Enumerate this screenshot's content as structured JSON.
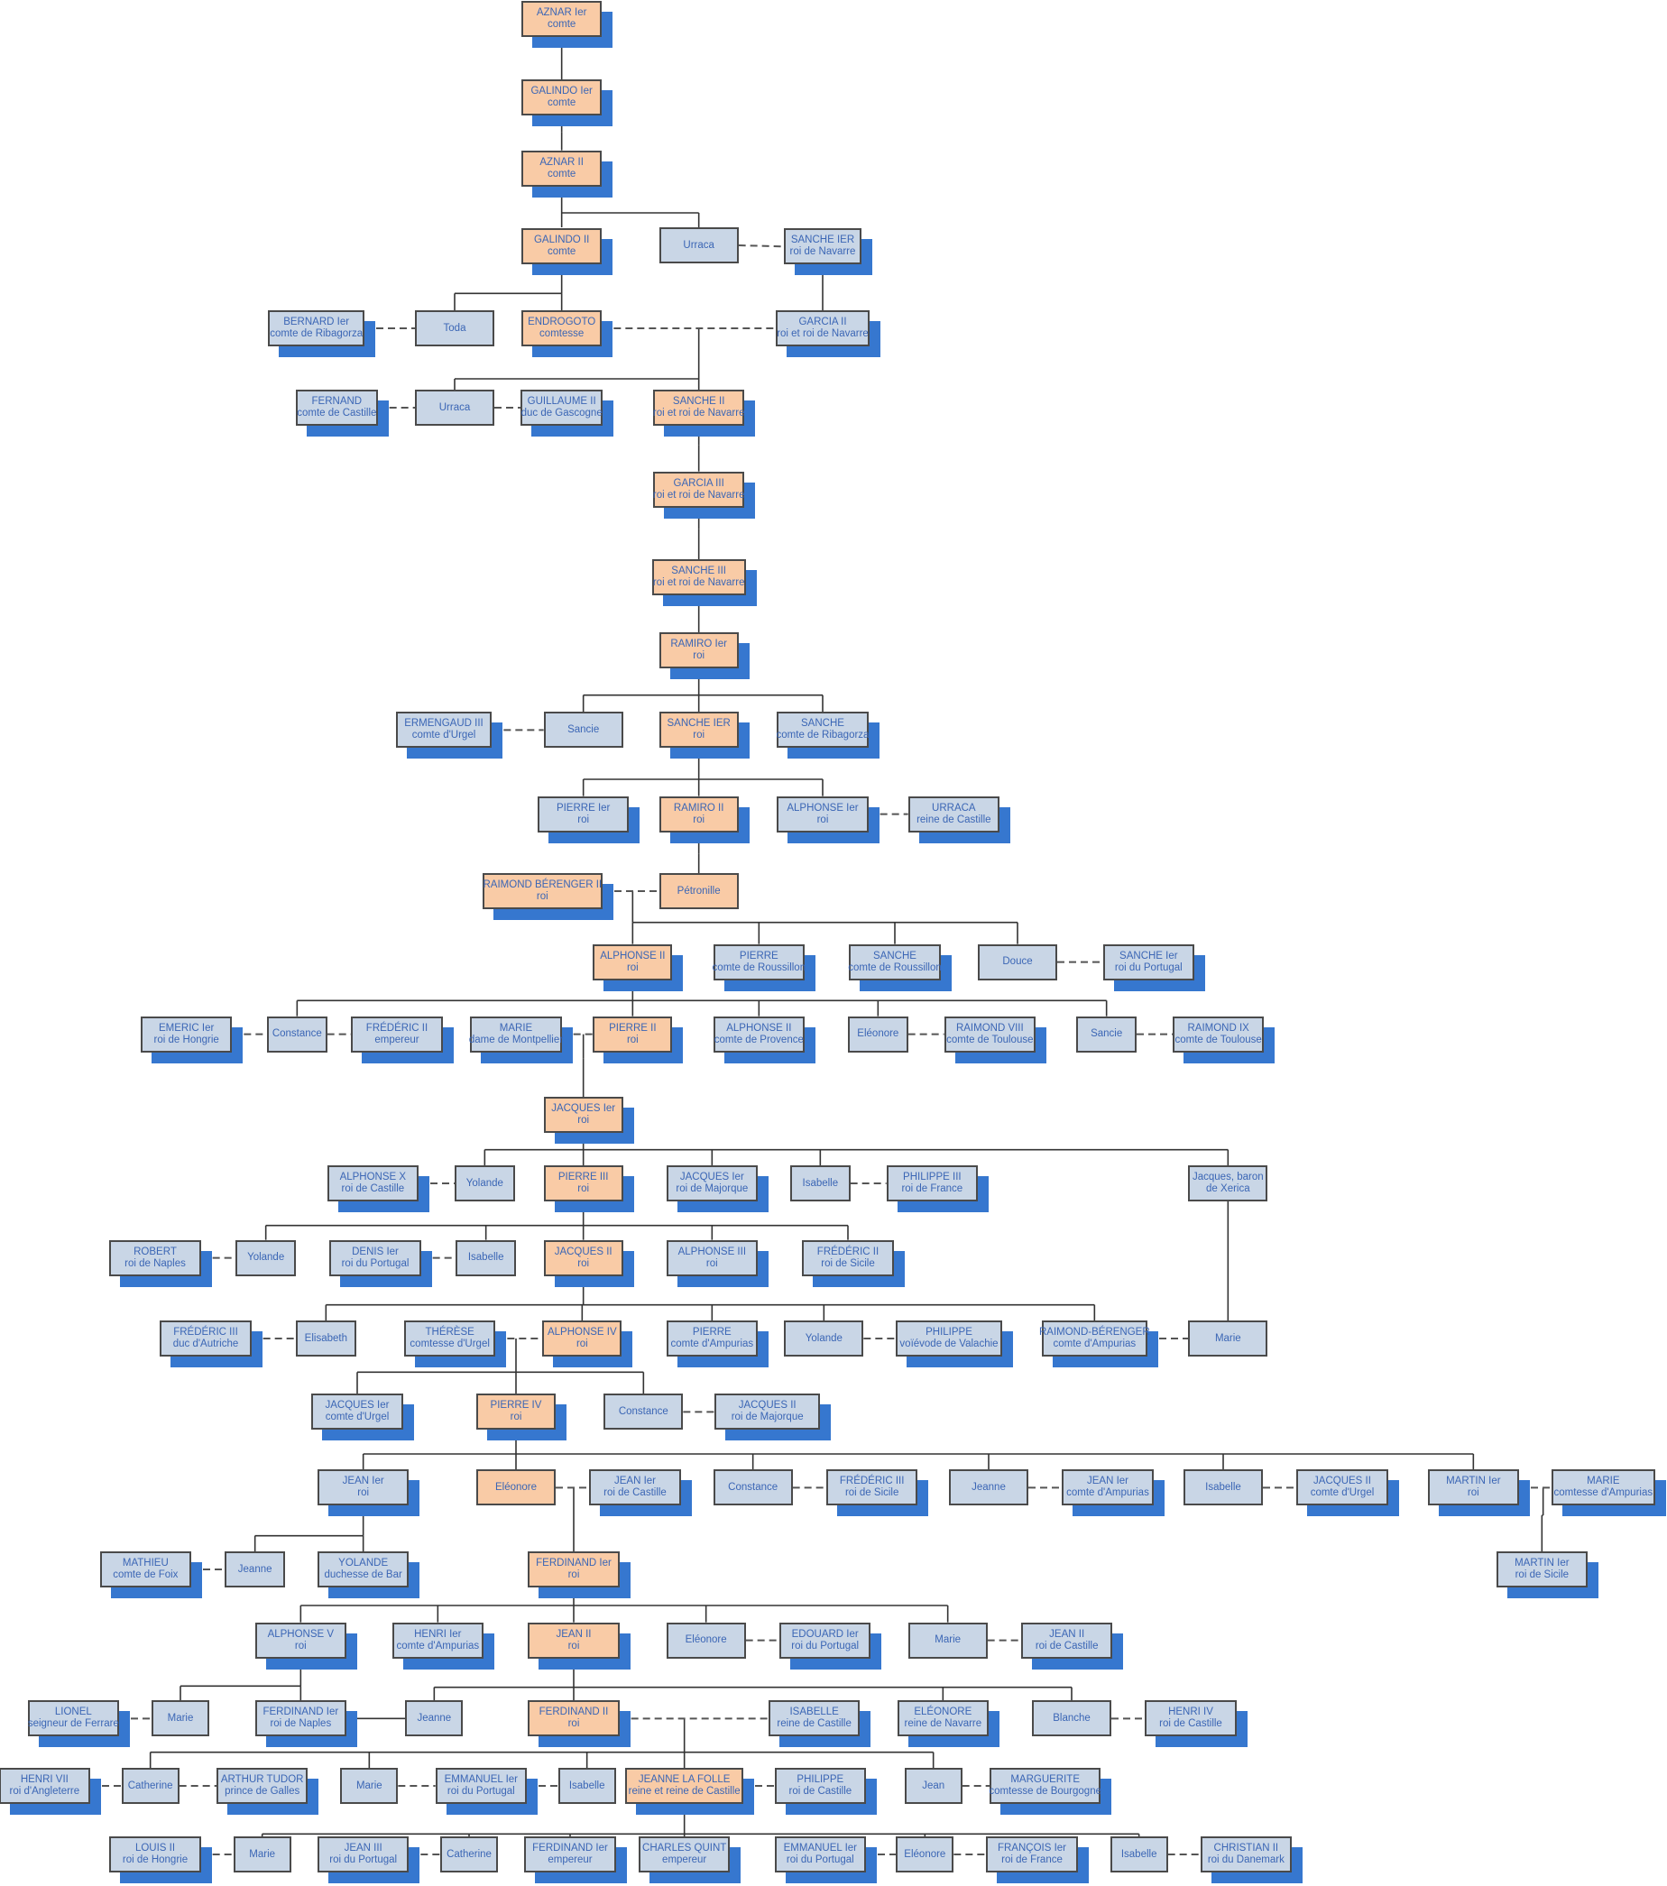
{
  "colors": {
    "person": "#c9d6e6",
    "main_line": "#f9cba6",
    "shadow": "#3677cf",
    "text": "#3b66b5",
    "line": "#333333"
  },
  "nodes": [
    {
      "name": "AZNAR Ier",
      "title": "comte",
      "main": true
    },
    {
      "name": "GALINDO Ier",
      "title": "comte",
      "main": true
    },
    {
      "name": "AZNAR II",
      "title": "comte",
      "main": true
    },
    {
      "name": "GALINDO II",
      "title": "comte",
      "main": true
    },
    {
      "name": "Urraca",
      "title": ""
    },
    {
      "name": "SANCHE IER",
      "title": "roi de Navarre"
    },
    {
      "name": "BERNARD Ier",
      "title": "comte de Ribagorza"
    },
    {
      "name": "Toda",
      "title": ""
    },
    {
      "name": "ENDROGOTO",
      "title": "comtesse",
      "main": true
    },
    {
      "name": "GARCIA II",
      "title": "roi et roi de Navarre"
    },
    {
      "name": "FERNAND",
      "title": "comte de Castille"
    },
    {
      "name": "Urraca",
      "title": ""
    },
    {
      "name": "GUILLAUME II",
      "title": "duc de Gascogne"
    },
    {
      "name": "SANCHE II",
      "title": "roi et roi de Navarre",
      "main": true
    },
    {
      "name": "GARCIA III",
      "title": "roi et roi de Navarre",
      "main": true
    },
    {
      "name": "SANCHE III",
      "title": "roi et roi de Navarre",
      "main": true
    },
    {
      "name": "RAMIRO Ier",
      "title": "roi",
      "main": true
    },
    {
      "name": "ERMENGAUD III",
      "title": "comte d'Urgel"
    },
    {
      "name": "Sancie",
      "title": ""
    },
    {
      "name": "SANCHE IER",
      "title": "roi",
      "main": true
    },
    {
      "name": "SANCHE",
      "title": "comte de Ribagorza"
    },
    {
      "name": "PIERRE Ier",
      "title": "roi"
    },
    {
      "name": "RAMIRO II",
      "title": "roi",
      "main": true
    },
    {
      "name": "ALPHONSE Ier",
      "title": "roi"
    },
    {
      "name": "URRACA",
      "title": "reine de Castille"
    },
    {
      "name": "RAIMOND BÉRENGER II",
      "title": "roi",
      "main": true
    },
    {
      "name": "Pétronille",
      "title": "",
      "main": true
    },
    {
      "name": "ALPHONSE II",
      "title": "roi",
      "main": true
    },
    {
      "name": "PIERRE",
      "title": "comte de Roussillon"
    },
    {
      "name": "SANCHE",
      "title": "comte de Roussillon"
    },
    {
      "name": "Douce",
      "title": ""
    },
    {
      "name": "SANCHE Ier",
      "title": "roi du Portugal"
    },
    {
      "name": "EMERIC Ier",
      "title": "roi de Hongrie"
    },
    {
      "name": "Constance",
      "title": ""
    },
    {
      "name": "FRÉDÉRIC II",
      "title": "empereur"
    },
    {
      "name": "MARIE",
      "title": "dame de Montpellier"
    },
    {
      "name": "PIERRE II",
      "title": "roi",
      "main": true
    },
    {
      "name": "ALPHONSE II",
      "title": "comte de Provence"
    },
    {
      "name": "Eléonore",
      "title": ""
    },
    {
      "name": "RAIMOND VIII",
      "title": "comte de Toulouse"
    },
    {
      "name": "Sancie",
      "title": ""
    },
    {
      "name": "RAIMOND IX",
      "title": "comte de Toulouse"
    },
    {
      "name": "JACQUES Ier",
      "title": "roi",
      "main": true
    },
    {
      "name": "ALPHONSE X",
      "title": "roi de Castille"
    },
    {
      "name": "Yolande",
      "title": ""
    },
    {
      "name": "PIERRE III",
      "title": "roi",
      "main": true
    },
    {
      "name": "JACQUES Ier",
      "title": "roi de Majorque"
    },
    {
      "name": "Isabelle",
      "title": ""
    },
    {
      "name": "PHILIPPE III",
      "title": "roi de France"
    },
    {
      "name": "Jacques, baron",
      "title": "de Xerica",
      "noshadow": true
    },
    {
      "name": "ROBERT",
      "title": "roi de Naples"
    },
    {
      "name": "Yolande",
      "title": ""
    },
    {
      "name": "DENIS Ier",
      "title": "roi du Portugal"
    },
    {
      "name": "Isabelle",
      "title": ""
    },
    {
      "name": "JACQUES II",
      "title": "roi",
      "main": true
    },
    {
      "name": "ALPHONSE III",
      "title": "roi"
    },
    {
      "name": "FRÉDÉRIC II",
      "title": "roi de Sicile"
    },
    {
      "name": "FRÉDÉRIC III",
      "title": "duc d'Autriche"
    },
    {
      "name": "Elisabeth",
      "title": ""
    },
    {
      "name": "THÉRÈSE",
      "title": "comtesse d'Urgel"
    },
    {
      "name": "ALPHONSE IV",
      "title": "roi",
      "main": true
    },
    {
      "name": "PIERRE",
      "title": "comte d'Ampurias"
    },
    {
      "name": "Yolande",
      "title": ""
    },
    {
      "name": "PHILIPPE",
      "title": "voïévode de Valachie"
    },
    {
      "name": "RAIMOND-BÉRENGER",
      "title": "comte d'Ampurias"
    },
    {
      "name": "Marie",
      "title": ""
    },
    {
      "name": "JACQUES Ier",
      "title": "comte d'Urgel"
    },
    {
      "name": "PIERRE IV",
      "title": "roi",
      "main": true
    },
    {
      "name": "Constance",
      "title": ""
    },
    {
      "name": "JACQUES II",
      "title": "roi de Majorque"
    },
    {
      "name": "JEAN Ier",
      "title": "roi"
    },
    {
      "name": "Eléonore",
      "title": "",
      "main": true
    },
    {
      "name": "JEAN Ier",
      "title": "roi de Castille"
    },
    {
      "name": "Constance",
      "title": ""
    },
    {
      "name": "FRÉDÉRIC III",
      "title": "roi de Sicile"
    },
    {
      "name": "Jeanne",
      "title": ""
    },
    {
      "name": "JEAN Ier",
      "title": "comte d'Ampurias"
    },
    {
      "name": "Isabelle",
      "title": ""
    },
    {
      "name": "JACQUES II",
      "title": "comte d'Urgel"
    },
    {
      "name": "MARTIN Ier",
      "title": "roi"
    },
    {
      "name": "MARIE",
      "title": "comtesse d'Ampurias"
    },
    {
      "name": "MATHIEU",
      "title": "comte de Foix"
    },
    {
      "name": "Jeanne",
      "title": ""
    },
    {
      "name": "YOLANDE",
      "title": "duchesse de Bar"
    },
    {
      "name": "FERDINAND Ier",
      "title": "roi",
      "main": true
    },
    {
      "name": "MARTIN Ier",
      "title": "roi de Sicile"
    },
    {
      "name": "ALPHONSE V",
      "title": "roi"
    },
    {
      "name": "HENRI Ier",
      "title": "comte d'Ampurias"
    },
    {
      "name": "JEAN II",
      "title": "roi",
      "main": true
    },
    {
      "name": "Eléonore",
      "title": ""
    },
    {
      "name": "EDOUARD Ier",
      "title": "roi du Portugal"
    },
    {
      "name": "Marie",
      "title": ""
    },
    {
      "name": "JEAN II",
      "title": "roi de Castille"
    },
    {
      "name": "LIONEL",
      "title": "seigneur de Ferrare"
    },
    {
      "name": "Marie",
      "title": ""
    },
    {
      "name": "FERDINAND Ier",
      "title": "roi de Naples"
    },
    {
      "name": "Jeanne",
      "title": ""
    },
    {
      "name": "FERDINAND II",
      "title": "roi",
      "main": true
    },
    {
      "name": "ISABELLE",
      "title": "reine de Castille"
    },
    {
      "name": "ELÉONORE",
      "title": "reine de Navarre"
    },
    {
      "name": "Blanche",
      "title": ""
    },
    {
      "name": "HENRI IV",
      "title": "roi de Castille"
    },
    {
      "name": "HENRI VII",
      "title": "roi d'Angleterre"
    },
    {
      "name": "Catherine",
      "title": ""
    },
    {
      "name": "ARTHUR TUDOR",
      "title": "prince de Galles"
    },
    {
      "name": "Marie",
      "title": ""
    },
    {
      "name": "EMMANUEL Ier",
      "title": "roi du Portugal"
    },
    {
      "name": "Isabelle",
      "title": ""
    },
    {
      "name": "JEANNE LA FOLLE",
      "title": "reine et reine de Castille",
      "main": true
    },
    {
      "name": "PHILIPPE",
      "title": "roi de Castille"
    },
    {
      "name": "Jean",
      "title": ""
    },
    {
      "name": "MARGUERITE",
      "title": "comtesse de  Bourgogne"
    },
    {
      "name": "LOUIS II",
      "title": "roi de Hongrie"
    },
    {
      "name": "Marie",
      "title": ""
    },
    {
      "name": "JEAN III",
      "title": "roi du Portugal"
    },
    {
      "name": "Catherine",
      "title": ""
    },
    {
      "name": "FERDINAND Ier",
      "title": "empereur"
    },
    {
      "name": "CHARLES QUINT",
      "title": "empereur"
    },
    {
      "name": "EMMANUEL Ier",
      "title": "roi du Portugal"
    },
    {
      "name": "Eléonore",
      "title": ""
    },
    {
      "name": "FRANÇOIS Ier",
      "title": "roi de France"
    },
    {
      "name": "Isabelle",
      "title": ""
    },
    {
      "name": "CHRISTIAN II",
      "title": "roi du Danemark"
    }
  ]
}
